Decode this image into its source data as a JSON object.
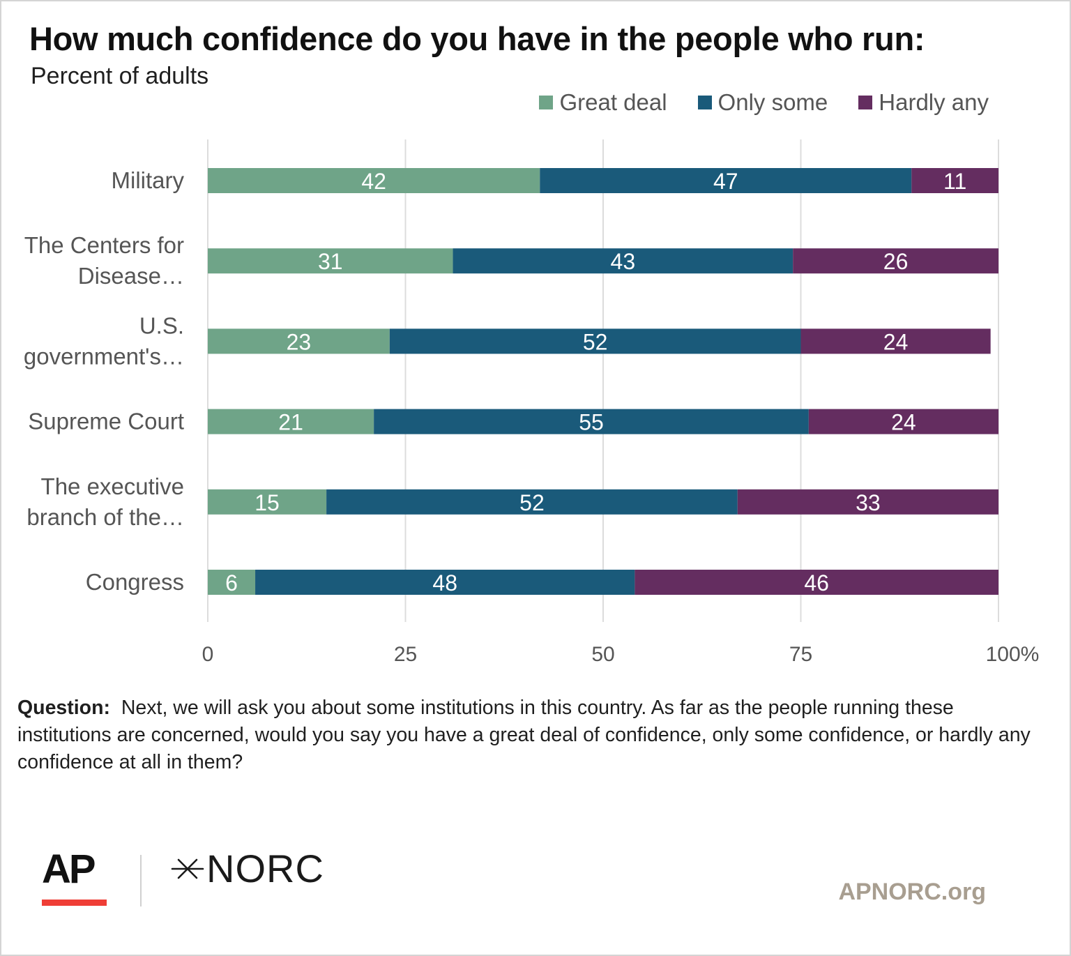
{
  "title": "How much confidence do you have in the people who run:",
  "subtitle": "Percent of adults",
  "colors": {
    "great_deal": "#6fa488",
    "only_some": "#1a5a7a",
    "hardly_any": "#642d60",
    "grid": "#dcdcdc",
    "axis_text": "#555555",
    "category_text": "#555555",
    "bar_label": "#ffffff",
    "ap_red": "#ef3e36",
    "site_text": "#a89e90"
  },
  "chart_data": {
    "type": "bar",
    "orientation": "horizontal",
    "stacked": true,
    "categories": [
      [
        "Military"
      ],
      [
        "The Centers for",
        "Disease…"
      ],
      [
        "U.S.",
        "government's…"
      ],
      [
        "Supreme Court"
      ],
      [
        "The executive",
        "branch of the…"
      ],
      [
        "Congress"
      ]
    ],
    "series": [
      {
        "name": "Great deal",
        "color_key": "great_deal",
        "values": [
          42,
          31,
          23,
          21,
          15,
          6
        ]
      },
      {
        "name": "Only some",
        "color_key": "only_some",
        "values": [
          47,
          43,
          52,
          55,
          52,
          48
        ]
      },
      {
        "name": "Hardly any",
        "color_key": "hardly_any",
        "values": [
          11,
          26,
          24,
          24,
          33,
          46
        ]
      }
    ],
    "xlim": [
      0,
      100
    ],
    "xticks": [
      "0",
      "25",
      "50",
      "75",
      "100%"
    ],
    "xtick_values": [
      0,
      25,
      50,
      75,
      100
    ],
    "grid": true,
    "legend_position": "top-right"
  },
  "question": {
    "label": "Question:",
    "text": "Next, we will ask you about some institutions in this country. As far as the people running these institutions are concerned, would you say you have a great deal of confidence, only some confidence, or hardly any confidence at all in them?"
  },
  "footer": {
    "ap_logo": "AP",
    "norc_logo": "NORC",
    "site": "APNORC.org"
  }
}
